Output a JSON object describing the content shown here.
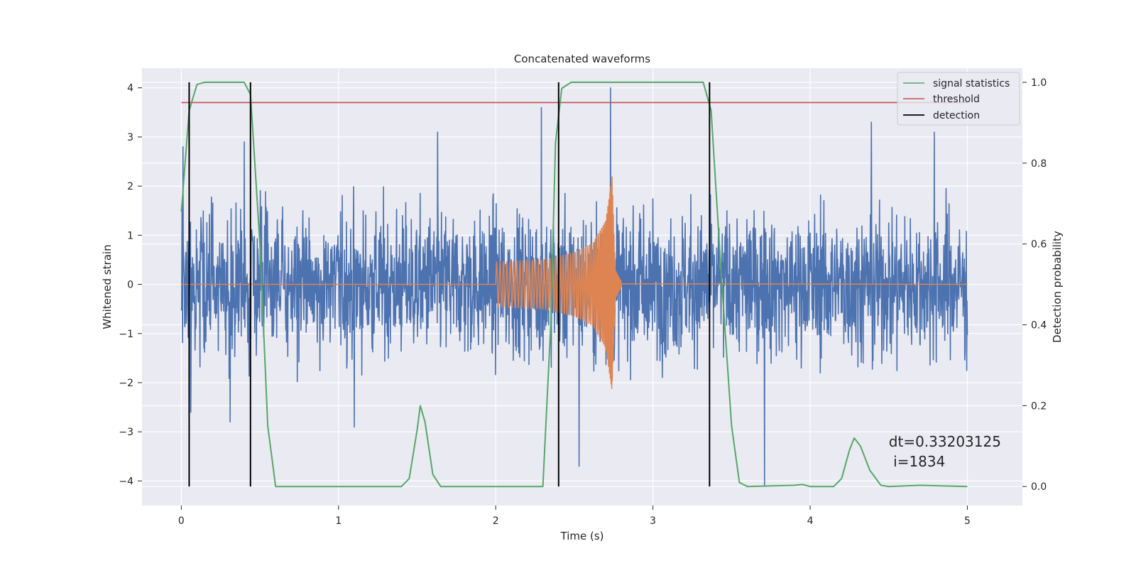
{
  "chart_data": {
    "type": "line",
    "title": "Concatenated waveforms",
    "xlabel": "Time (s)",
    "ylabel": "Whitened strain",
    "y2label": "Detection probability",
    "xlim": [
      -0.25,
      5.35
    ],
    "ylim": [
      -4.5,
      4.4
    ],
    "y2lim": [
      -0.047,
      1.035
    ],
    "xticks": [
      "0",
      "1",
      "2",
      "3",
      "4",
      "5"
    ],
    "yticks": [
      "4",
      "3",
      "2",
      "1",
      "0",
      "−1",
      "−2",
      "−3",
      "−4"
    ],
    "y2ticks": [
      "1.0",
      "0.8",
      "0.6",
      "0.4",
      "0.2",
      "0.0"
    ],
    "grid": true,
    "legend": {
      "position": "top-right",
      "entries": [
        "signal statistics",
        "threshold",
        "detection"
      ]
    },
    "series": [
      {
        "name": "",
        "kind": "whitened-strain-noise",
        "color": "#4c72b0",
        "axis": "left",
        "x_range": [
          0,
          5
        ],
        "typical_amplitude": [
          -2.0,
          2.2
        ],
        "peaks": [
          {
            "x": 0.01,
            "y": 2.8
          },
          {
            "x": 0.06,
            "y": -2.6
          },
          {
            "x": 0.4,
            "y": 2.9
          },
          {
            "x": 1.63,
            "y": 3.1
          },
          {
            "x": 2.29,
            "y": 3.6
          },
          {
            "x": 2.73,
            "y": 4.0
          },
          {
            "x": 2.53,
            "y": -3.7
          },
          {
            "x": 3.71,
            "y": -4.1
          },
          {
            "x": 4.39,
            "y": 3.3
          },
          {
            "x": 4.79,
            "y": 3.1
          },
          {
            "x": 0.31,
            "y": -2.8
          },
          {
            "x": 1.1,
            "y": -2.9
          }
        ]
      },
      {
        "name": "",
        "kind": "injected-chirp",
        "color": "#dd8452",
        "axis": "left",
        "x": [
          0,
          2.0,
          2.3,
          2.5,
          2.62,
          2.7,
          2.74,
          2.76,
          2.8,
          5.0
        ],
        "envelope": [
          0,
          0.45,
          0.5,
          0.65,
          0.85,
          1.3,
          2.2,
          0.3,
          0.05,
          0
        ]
      },
      {
        "name": "signal statistics",
        "color": "#55a868",
        "axis": "right",
        "x": [
          0.0,
          0.05,
          0.1,
          0.15,
          0.4,
          0.44,
          0.5,
          0.55,
          0.6,
          1.4,
          1.45,
          1.5,
          1.52,
          1.55,
          1.6,
          1.65,
          1.7,
          2.3,
          2.35,
          2.38,
          2.42,
          2.48,
          2.55,
          3.32,
          3.37,
          3.43,
          3.5,
          3.55,
          3.6,
          3.9,
          3.95,
          4.0,
          4.15,
          4.2,
          4.25,
          4.28,
          4.32,
          4.38,
          4.45,
          4.5,
          4.7,
          5.0
        ],
        "y": [
          0.68,
          0.93,
          0.995,
          1.0,
          1.0,
          0.97,
          0.6,
          0.15,
          0.0,
          0.0,
          0.02,
          0.14,
          0.2,
          0.16,
          0.03,
          0.0,
          0.0,
          0.0,
          0.4,
          0.85,
          0.985,
          1.0,
          1.0,
          1.0,
          0.93,
          0.55,
          0.15,
          0.01,
          0.0,
          0.003,
          0.005,
          0.0,
          0.0,
          0.02,
          0.09,
          0.12,
          0.1,
          0.04,
          0.003,
          0.0,
          0.003,
          0.0
        ]
      },
      {
        "name": "threshold",
        "color": "#c44e52",
        "axis": "right",
        "value": 0.95,
        "x_range": [
          0,
          5
        ]
      },
      {
        "name": "detection",
        "color": "#000000",
        "axis": "right",
        "x": [
          0.05,
          0.44,
          2.4,
          3.36
        ],
        "y_range": [
          0,
          1
        ]
      }
    ],
    "annotation": {
      "lines": [
        "dt=0.33203125",
        " i=1834"
      ],
      "x": 4.5,
      "y": -3.2
    }
  }
}
